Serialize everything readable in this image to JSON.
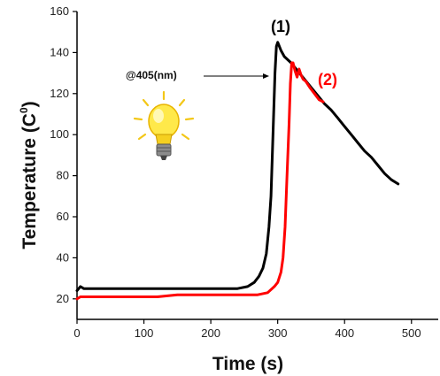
{
  "chart_data": {
    "type": "line",
    "xlabel": "Time (s)",
    "ylabel_main": "Temperature (C",
    "ylabel_sup": "0",
    "ylabel_close": ")",
    "xlim": [
      0,
      540
    ],
    "ylim": [
      10,
      160
    ],
    "xticks": [
      0,
      100,
      200,
      300,
      400,
      500
    ],
    "yticks": [
      20,
      40,
      60,
      80,
      100,
      120,
      140,
      160
    ],
    "grid": false,
    "legend": "none",
    "annotation": {
      "text": "@405(nm)",
      "points_to": {
        "x": 298,
        "y": 142
      }
    },
    "series": [
      {
        "name": "(1)",
        "color": "#000000",
        "points": [
          [
            0,
            24
          ],
          [
            5,
            26
          ],
          [
            10,
            25
          ],
          [
            30,
            25
          ],
          [
            60,
            25
          ],
          [
            90,
            25
          ],
          [
            120,
            25
          ],
          [
            150,
            25
          ],
          [
            180,
            25
          ],
          [
            210,
            25
          ],
          [
            240,
            25
          ],
          [
            255,
            26
          ],
          [
            265,
            28
          ],
          [
            272,
            31
          ],
          [
            278,
            35
          ],
          [
            283,
            42
          ],
          [
            287,
            55
          ],
          [
            290,
            70
          ],
          [
            292,
            90
          ],
          [
            294,
            110
          ],
          [
            296,
            130
          ],
          [
            298,
            143
          ],
          [
            300,
            145
          ],
          [
            305,
            141
          ],
          [
            310,
            138
          ],
          [
            320,
            135
          ],
          [
            330,
            131
          ],
          [
            340,
            127
          ],
          [
            350,
            123
          ],
          [
            360,
            119
          ],
          [
            370,
            115
          ],
          [
            380,
            112
          ],
          [
            390,
            108
          ],
          [
            400,
            104
          ],
          [
            410,
            100
          ],
          [
            420,
            96
          ],
          [
            430,
            92
          ],
          [
            440,
            89
          ],
          [
            450,
            85
          ],
          [
            460,
            81
          ],
          [
            470,
            78
          ],
          [
            480,
            76
          ]
        ]
      },
      {
        "name": "(2)",
        "color": "#ff0000",
        "points": [
          [
            0,
            20
          ],
          [
            5,
            21
          ],
          [
            30,
            21
          ],
          [
            60,
            21
          ],
          [
            90,
            21
          ],
          [
            120,
            21
          ],
          [
            150,
            22
          ],
          [
            180,
            22
          ],
          [
            210,
            22
          ],
          [
            240,
            22
          ],
          [
            270,
            22
          ],
          [
            285,
            23
          ],
          [
            295,
            26
          ],
          [
            300,
            28
          ],
          [
            305,
            33
          ],
          [
            308,
            40
          ],
          [
            311,
            55
          ],
          [
            314,
            80
          ],
          [
            317,
            105
          ],
          [
            319,
            125
          ],
          [
            321,
            135
          ],
          [
            323,
            135
          ],
          [
            326,
            131
          ],
          [
            329,
            128
          ],
          [
            332,
            132
          ],
          [
            335,
            129
          ],
          [
            338,
            127
          ],
          [
            342,
            126
          ],
          [
            348,
            123
          ],
          [
            355,
            120
          ],
          [
            362,
            117
          ],
          [
            368,
            116
          ]
        ]
      }
    ]
  },
  "colors": {
    "series_1": "#000000",
    "series_2": "#ff0000",
    "bulb": "#ffe94a",
    "bulb_base": "#8c8c8c"
  },
  "icon": "light-bulb-icon"
}
